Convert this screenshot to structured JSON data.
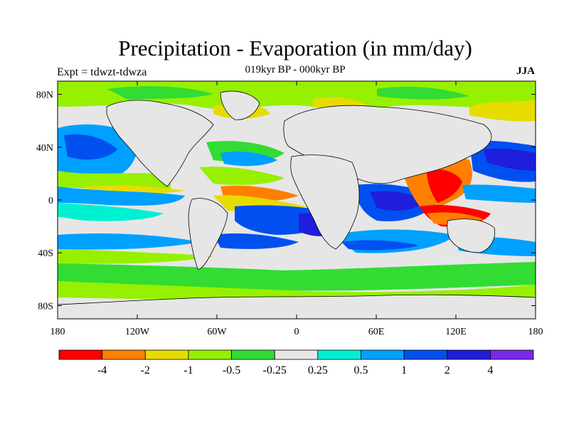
{
  "title": "Precipitation - Evaporation (in mm/day)",
  "subtitle": "019kyr BP - 000kyr BP",
  "experiment_label": "Expt = tdwzt-tdwza",
  "season_label": "JJA",
  "map": {
    "projection": "equirectangular",
    "lon_range": [
      -180,
      180
    ],
    "lat_range": [
      -90,
      90
    ],
    "lat_ticks": [
      "80N",
      "40N",
      "0",
      "40S",
      "80S"
    ],
    "lon_ticks": [
      "180",
      "120W",
      "60W",
      "0",
      "60E",
      "120E",
      "180"
    ],
    "background_color": "#e6e6e6"
  },
  "colorbar": {
    "colors": [
      "#ff0000",
      "#ff8000",
      "#e6dc00",
      "#96f000",
      "#32dc32",
      "#e6e6e6",
      "#00f0d2",
      "#00a0ff",
      "#0050f0",
      "#1e1edc",
      "#7828e6"
    ],
    "labels": [
      "-4",
      "-2",
      "-1",
      "-0.5",
      "-0.25",
      "0.25",
      "0.5",
      "1",
      "2",
      "4"
    ]
  }
}
